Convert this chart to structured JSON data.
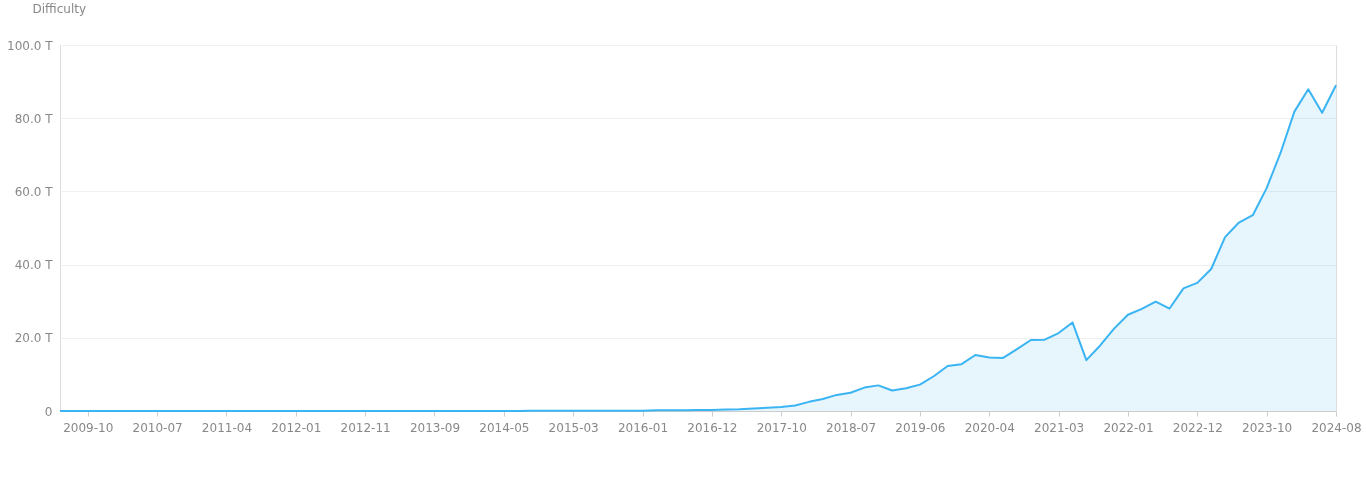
{
  "chart_data": {
    "type": "area",
    "ylabel": "Difficulty",
    "categories": [
      null,
      null,
      "2009-10",
      null,
      null,
      null,
      null,
      "2010-07",
      null,
      null,
      null,
      null,
      "2011-04",
      null,
      null,
      null,
      null,
      "2012-01",
      null,
      null,
      null,
      null,
      "2012-11",
      null,
      null,
      null,
      null,
      "2013-09",
      null,
      null,
      null,
      null,
      "2014-05",
      null,
      null,
      null,
      null,
      "2015-03",
      null,
      null,
      null,
      null,
      "2016-01",
      null,
      null,
      null,
      null,
      "2016-12",
      null,
      null,
      null,
      null,
      "2017-10",
      null,
      null,
      null,
      null,
      "2018-07",
      null,
      null,
      null,
      null,
      "2019-06",
      null,
      null,
      null,
      null,
      "2020-04",
      null,
      null,
      null,
      null,
      "2021-03",
      null,
      null,
      null,
      null,
      "2022-01",
      null,
      null,
      null,
      null,
      "2022-12",
      null,
      null,
      null,
      null,
      "2023-10",
      null,
      null,
      null,
      null,
      "2024-08"
    ],
    "series": [
      {
        "color": "#3ab4f2",
        "values": [
          0,
          0,
          0,
          0,
          0,
          0,
          0,
          0,
          0,
          0,
          0,
          0,
          0,
          0,
          0,
          0,
          0,
          0,
          0,
          0,
          0,
          0,
          0,
          0,
          0,
          0,
          0,
          0,
          0,
          0,
          0,
          0,
          0,
          0,
          0.1,
          0.1,
          0.1,
          0.1,
          0.1,
          0.1,
          0.1,
          0.1,
          0.1,
          0.2,
          0.2,
          0.2,
          0.3,
          0.3,
          0.4,
          0.5,
          0.7,
          0.9,
          1.1,
          1.5,
          2.5,
          3.3,
          4.4,
          5.0,
          6.4,
          7.0,
          5.6,
          6.2,
          7.2,
          9.5,
          12.3,
          12.8,
          15.3,
          14.6,
          14.5,
          16.9,
          19.4,
          19.5,
          21.3,
          24.2,
          13.9,
          17.9,
          22.5,
          26.3,
          27.9,
          29.9,
          28.0,
          33.5,
          35.0,
          38.8,
          47.5,
          51.5,
          53.5,
          60.9,
          70.5,
          81.8,
          87.9,
          81.5,
          89
        ]
      }
    ],
    "ylim": [
      0,
      100
    ],
    "yticks": [
      0,
      {
        "value": 20,
        "label": "20.0 T"
      },
      {
        "value": 40,
        "label": "40.0 T"
      },
      {
        "value": 60,
        "label": "60.0 T"
      },
      {
        "value": 80,
        "label": "80.0 T"
      },
      {
        "value": 100,
        "label": "100.0 T"
      }
    ],
    "grid": "y"
  }
}
